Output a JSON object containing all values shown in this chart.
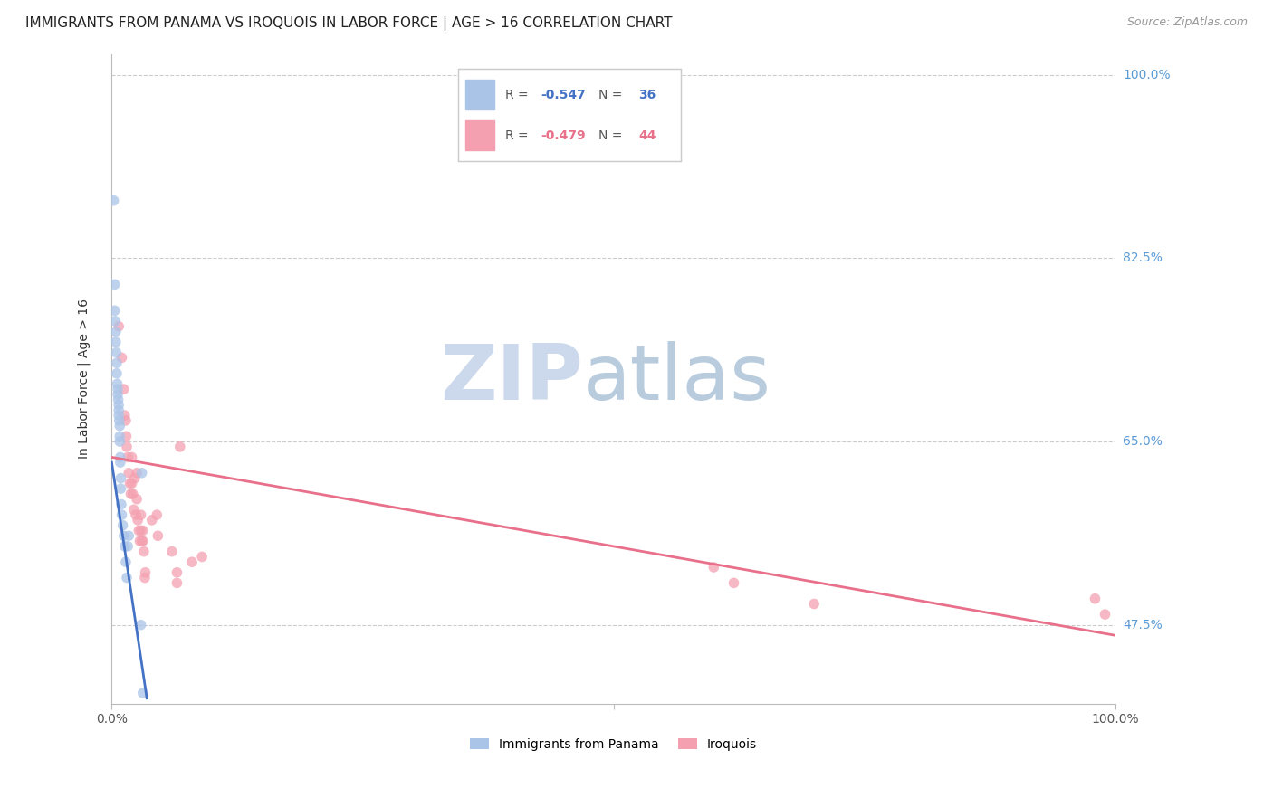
{
  "title": "IMMIGRANTS FROM PANAMA VS IROQUOIS IN LABOR FORCE | AGE > 16 CORRELATION CHART",
  "source": "Source: ZipAtlas.com",
  "ylabel": "In Labor Force | Age > 16",
  "xlim": [
    0,
    100
  ],
  "ylim": [
    40,
    102
  ],
  "xtick_positions": [
    0,
    50,
    100
  ],
  "xtick_labels": [
    "0.0%",
    "",
    "100.0%"
  ],
  "ytick_positions": [
    47.5,
    65.0,
    82.5,
    100.0
  ],
  "ytick_labels": [
    "47.5%",
    "65.0%",
    "82.5%",
    "100.0%"
  ],
  "panama_points": [
    [
      0.2,
      88.0
    ],
    [
      0.3,
      80.0
    ],
    [
      0.3,
      77.5
    ],
    [
      0.35,
      76.5
    ],
    [
      0.4,
      75.5
    ],
    [
      0.4,
      74.5
    ],
    [
      0.45,
      73.5
    ],
    [
      0.5,
      72.5
    ],
    [
      0.5,
      71.5
    ],
    [
      0.55,
      70.5
    ],
    [
      0.6,
      70.0
    ],
    [
      0.6,
      69.5
    ],
    [
      0.65,
      69.0
    ],
    [
      0.7,
      68.5
    ],
    [
      0.7,
      68.0
    ],
    [
      0.7,
      67.5
    ],
    [
      0.75,
      67.0
    ],
    [
      0.8,
      66.5
    ],
    [
      0.8,
      65.5
    ],
    [
      0.8,
      65.0
    ],
    [
      0.85,
      63.5
    ],
    [
      0.85,
      63.0
    ],
    [
      0.9,
      61.5
    ],
    [
      0.9,
      60.5
    ],
    [
      0.95,
      59.0
    ],
    [
      1.0,
      58.0
    ],
    [
      1.1,
      57.0
    ],
    [
      1.2,
      56.0
    ],
    [
      1.3,
      55.0
    ],
    [
      1.4,
      53.5
    ],
    [
      1.5,
      52.0
    ],
    [
      1.6,
      55.0
    ],
    [
      1.7,
      56.0
    ],
    [
      2.9,
      47.5
    ],
    [
      3.0,
      62.0
    ],
    [
      3.1,
      41.0
    ]
  ],
  "iroquois_points": [
    [
      0.7,
      76.0
    ],
    [
      1.0,
      73.0
    ],
    [
      1.2,
      70.0
    ],
    [
      1.3,
      67.5
    ],
    [
      1.4,
      67.0
    ],
    [
      1.45,
      65.5
    ],
    [
      1.5,
      64.5
    ],
    [
      1.6,
      63.5
    ],
    [
      1.7,
      62.0
    ],
    [
      1.8,
      61.0
    ],
    [
      1.9,
      60.0
    ],
    [
      2.0,
      63.5
    ],
    [
      2.0,
      61.0
    ],
    [
      2.1,
      60.0
    ],
    [
      2.2,
      58.5
    ],
    [
      2.3,
      61.5
    ],
    [
      2.4,
      58.0
    ],
    [
      2.5,
      62.0
    ],
    [
      2.5,
      59.5
    ],
    [
      2.6,
      57.5
    ],
    [
      2.7,
      56.5
    ],
    [
      2.8,
      55.5
    ],
    [
      2.9,
      58.0
    ],
    [
      2.9,
      56.5
    ],
    [
      3.0,
      55.5
    ],
    [
      3.1,
      56.5
    ],
    [
      3.1,
      55.5
    ],
    [
      3.2,
      54.5
    ],
    [
      3.3,
      52.0
    ],
    [
      3.35,
      52.5
    ],
    [
      4.0,
      57.5
    ],
    [
      4.5,
      58.0
    ],
    [
      4.6,
      56.0
    ],
    [
      6.0,
      54.5
    ],
    [
      6.5,
      52.5
    ],
    [
      6.5,
      51.5
    ],
    [
      6.8,
      64.5
    ],
    [
      8.0,
      53.5
    ],
    [
      9.0,
      54.0
    ],
    [
      60.0,
      53.0
    ],
    [
      62.0,
      51.5
    ],
    [
      70.0,
      49.5
    ],
    [
      98.0,
      50.0
    ],
    [
      99.0,
      48.5
    ]
  ],
  "panama_line_x": [
    0.0,
    3.5
  ],
  "panama_line_y": [
    63.0,
    40.5
  ],
  "iroquois_line_x": [
    0.0,
    100.0
  ],
  "iroquois_line_y": [
    63.5,
    46.5
  ],
  "background_color": "#ffffff",
  "grid_color": "#cccccc",
  "point_size": 70,
  "panama_color": "#aac4e8",
  "iroquois_color": "#f4a0b0",
  "panama_line_color": "#4472c4",
  "iroquois_line_color": "#e8708a",
  "watermark_zip_color": "#ccd8eb",
  "watermark_atlas_color": "#b8ccde",
  "title_fontsize": 11,
  "axis_label_fontsize": 10,
  "tick_fontsize": 10,
  "source_fontsize": 9,
  "corr_label_color_panama": "#4472c4",
  "corr_label_color_iroquois": "#e8708a"
}
